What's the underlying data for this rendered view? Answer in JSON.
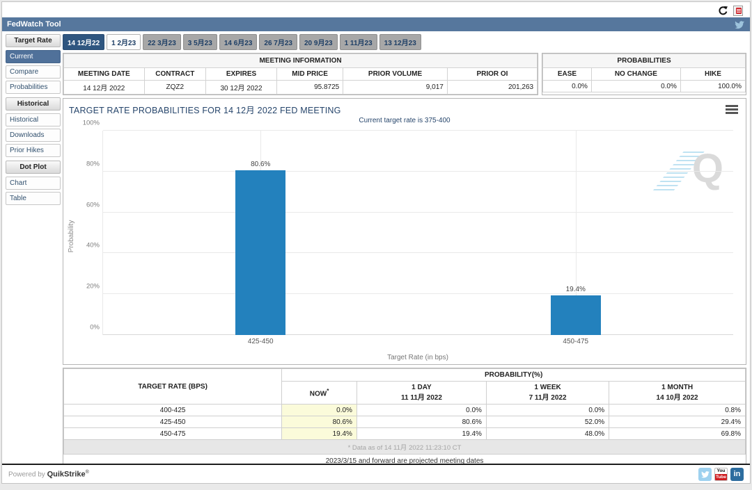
{
  "topbar": {
    "refresh_icon": "refresh-icon",
    "export_icon": "export-icon"
  },
  "header": {
    "title": "FedWatch Tool",
    "twitter_icon": "twitter-icon"
  },
  "sidebar": {
    "sections": [
      {
        "header": "Target Rate",
        "items": [
          {
            "label": "Current",
            "selected": true
          },
          {
            "label": "Compare",
            "selected": false
          },
          {
            "label": "Probabilities",
            "selected": false
          }
        ]
      },
      {
        "header": "Historical",
        "items": [
          {
            "label": "Historical",
            "selected": false
          },
          {
            "label": "Downloads",
            "selected": false
          },
          {
            "label": "Prior Hikes",
            "selected": false
          }
        ]
      },
      {
        "header": "Dot Plot",
        "items": [
          {
            "label": "Chart",
            "selected": false
          },
          {
            "label": "Table",
            "selected": false
          }
        ]
      }
    ]
  },
  "tabs": [
    {
      "label": "14 12月22",
      "state": "selected"
    },
    {
      "label": "1 2月23",
      "state": "light"
    },
    {
      "label": "22 3月23",
      "state": "default"
    },
    {
      "label": "3 5月23",
      "state": "default"
    },
    {
      "label": "14 6月23",
      "state": "default"
    },
    {
      "label": "26 7月23",
      "state": "default"
    },
    {
      "label": "20 9月23",
      "state": "default"
    },
    {
      "label": "1 11月23",
      "state": "default"
    },
    {
      "label": "13 12月23",
      "state": "default"
    }
  ],
  "meeting_info": {
    "title": "MEETING INFORMATION",
    "columns": [
      "MEETING DATE",
      "CONTRACT",
      "EXPIRES",
      "MID PRICE",
      "PRIOR VOLUME",
      "PRIOR OI"
    ],
    "values": [
      "14 12月 2022",
      "ZQZ2",
      "30 12月 2022",
      "95.8725",
      "9,017",
      "201,263"
    ]
  },
  "probabilities_panel": {
    "title": "PROBABILITIES",
    "columns": [
      "EASE",
      "NO CHANGE",
      "HIKE"
    ],
    "values": [
      "0.0%",
      "0.0%",
      "100.0%"
    ]
  },
  "chart": {
    "title": "TARGET RATE PROBABILITIES FOR 14 12月 2022 FED MEETING",
    "subtitle": "Current target rate is 375-400",
    "ylabel": "Probability",
    "xlabel": "Target Rate (in bps)",
    "y_ticks": [
      "0%",
      "20%",
      "40%",
      "60%",
      "80%",
      "100%"
    ],
    "watermark": "Q",
    "menu_icon": "hamburger-icon"
  },
  "chart_data": {
    "type": "bar",
    "categories": [
      "425-450",
      "450-475"
    ],
    "values": [
      80.6,
      19.4
    ],
    "labels": [
      "80.6%",
      "19.4%"
    ],
    "title": "TARGET RATE PROBABILITIES FOR 14 12月 2022 FED MEETING",
    "subtitle": "Current target rate is 375-400",
    "xlabel": "Target Rate (in bps)",
    "ylabel": "Probability",
    "ylim": [
      0,
      100
    ],
    "y_tick_step": 20,
    "grid": true,
    "legend": false,
    "bar_color": "#2381bd"
  },
  "bottom_table": {
    "col1_header": "TARGET RATE (BPS)",
    "group_header": "PROBABILITY(%)",
    "sub_headers": [
      {
        "top": "NOW",
        "sup": "*",
        "bottom": ""
      },
      {
        "top": "1 DAY",
        "sup": "",
        "bottom": "11 11月 2022"
      },
      {
        "top": "1 WEEK",
        "sup": "",
        "bottom": "7 11月 2022"
      },
      {
        "top": "1 MONTH",
        "sup": "",
        "bottom": "14 10月 2022"
      }
    ],
    "rows": [
      {
        "rate": "400-425",
        "now": "0.0%",
        "day": "0.0%",
        "week": "0.0%",
        "month": "0.8%"
      },
      {
        "rate": "425-450",
        "now": "80.6%",
        "day": "80.6%",
        "week": "52.0%",
        "month": "29.4%"
      },
      {
        "rate": "450-475",
        "now": "19.4%",
        "day": "19.4%",
        "week": "48.0%",
        "month": "69.8%"
      }
    ],
    "footnote": "* Data as of 14 11月 2022 11:23:10 CT",
    "note": "2023/3/15 and forward are projected meeting dates"
  },
  "footer": {
    "powered_by": "Powered by",
    "brand": "QuikStrike",
    "registered": "®",
    "social": [
      "twitter",
      "youtube",
      "linkedin"
    ],
    "youtube_top": "You",
    "youtube_bottom": "Tube",
    "linkedin_text": "in"
  }
}
